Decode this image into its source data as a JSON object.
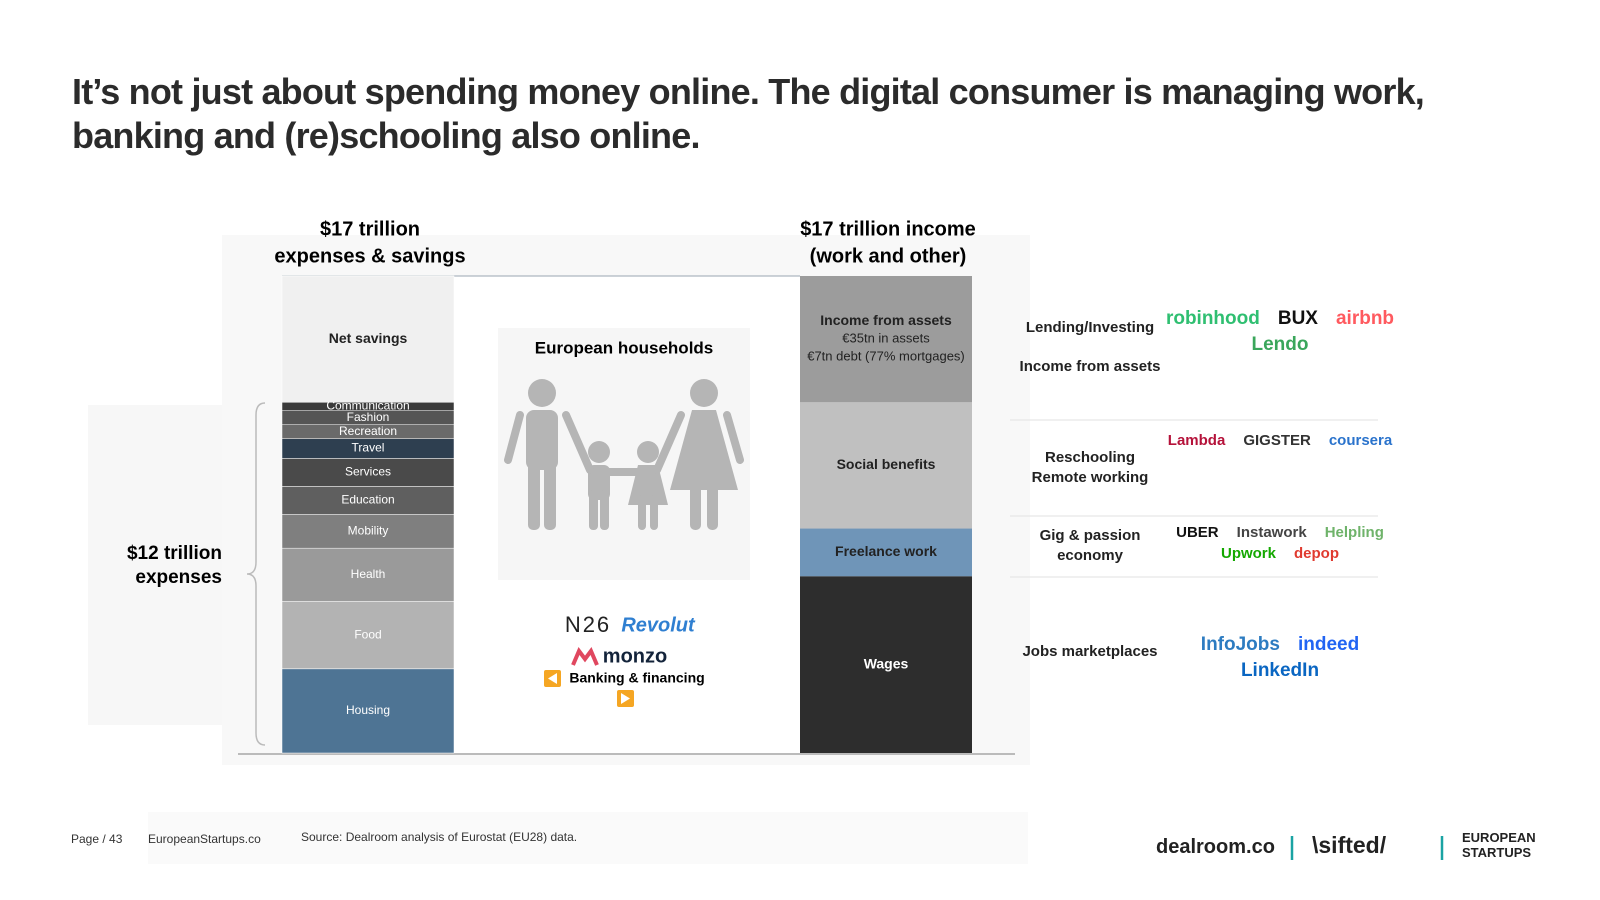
{
  "title": "It’s not just about spending money online. The digital consumer is managing work, banking and (re)schooling also online.",
  "chart_data": {
    "type": "stacked-column",
    "ylim": [
      0,
      17
    ],
    "columns": [
      {
        "heading": [
          "$17 trillion",
          "expenses & savings"
        ],
        "segments": [
          {
            "name": "Housing",
            "value": 3.0,
            "color": "#4e7494"
          },
          {
            "name": "Food",
            "value": 2.4,
            "color": "#b3b3b3"
          },
          {
            "name": "Health",
            "value": 1.9,
            "color": "#9a9a9a"
          },
          {
            "name": "Mobility",
            "value": 1.2,
            "color": "#7f7f7f"
          },
          {
            "name": "Education",
            "value": 1.0,
            "color": "#5f5f5f"
          },
          {
            "name": "Services",
            "value": 1.0,
            "color": "#4a4a4a"
          },
          {
            "name": "Travel",
            "value": 0.7,
            "color": "#2e3f50"
          },
          {
            "name": "Recreation",
            "value": 0.5,
            "color": "#6a6a6a"
          },
          {
            "name": "Fashion",
            "value": 0.5,
            "color": "#555555"
          },
          {
            "name": "Communication",
            "value": 0.3,
            "color": "#3a3a3a"
          },
          {
            "name": "Net savings",
            "value": 4.5,
            "color": "#f0f0f0"
          }
        ]
      },
      {
        "heading": [
          "$17 trillion income",
          "(work and other)"
        ],
        "segments": [
          {
            "name": "Wages",
            "value": 6.3,
            "color": "#2d2d2d"
          },
          {
            "name": "Freelance work",
            "value": 1.7,
            "color": "#6f95b8"
          },
          {
            "name": "Social benefits",
            "value": 4.5,
            "color": "#c0c0c0"
          },
          {
            "name": "Income from assets",
            "value": 4.5,
            "color": "#9c9c9c",
            "notes": [
              "€35tn in assets",
              "€7tn debt (77% mortgages)"
            ]
          }
        ]
      }
    ],
    "brace_label": [
      "$12 trillion",
      "expenses"
    ]
  },
  "middle": {
    "title": "European households",
    "brands": [
      "N26",
      "Revolut",
      "monzo"
    ],
    "caption": "Banking & financing"
  },
  "sectors": [
    {
      "labels": [
        "Lending/Investing",
        "Income from assets"
      ],
      "companies": [
        {
          "name": "robinhood",
          "color": "#2fbf71"
        },
        {
          "name": "BUX",
          "color": "#111111"
        },
        {
          "name": "airbnb",
          "color": "#ff5a5f"
        },
        {
          "name": "Lendo",
          "color": "#3aa65b"
        }
      ]
    },
    {
      "labels": [
        "Reschooling",
        "Remote working"
      ],
      "companies": [
        {
          "name": "Lambda",
          "color": "#b5123a"
        },
        {
          "name": "GIGSTER",
          "color": "#333333"
        },
        {
          "name": "coursera",
          "color": "#2a73cc"
        }
      ]
    },
    {
      "labels": [
        "Gig  & passion economy"
      ],
      "companies": [
        {
          "name": "UBER",
          "color": "#111111"
        },
        {
          "name": "Instawork",
          "color": "#444444"
        },
        {
          "name": "Helpling",
          "color": "#6fb36a"
        },
        {
          "name": "Upwork",
          "color": "#14a800"
        },
        {
          "name": "depop",
          "color": "#e03a2f"
        }
      ]
    },
    {
      "labels": [
        "Jobs marketplaces"
      ],
      "companies": [
        {
          "name": "InfoJobs",
          "color": "#2d7cc1"
        },
        {
          "name": "indeed",
          "color": "#2164f3"
        },
        {
          "name": "LinkedIn",
          "color": "#0a66c2"
        }
      ]
    }
  ],
  "footer": {
    "page": "Page / 43",
    "site": "EuropeanStartups.co",
    "source": "Source: Dealroom analysis of Eurostat (EU28) data.",
    "partners": [
      "dealroom.co",
      "\\sifted/",
      "EUROPEAN STARTUPS"
    ]
  }
}
